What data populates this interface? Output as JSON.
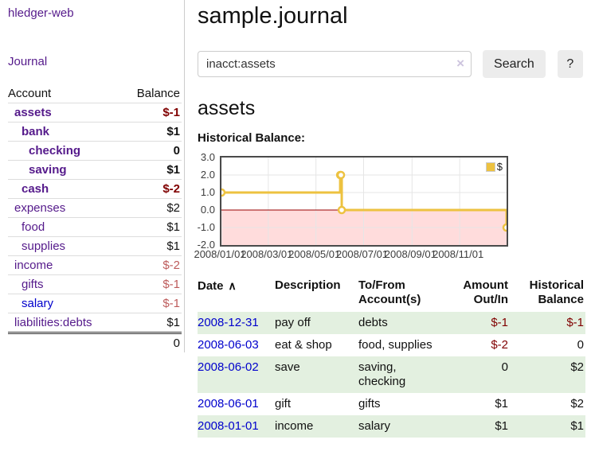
{
  "colors": {
    "link_purple": "#551a8b",
    "link_blue": "#0000cc",
    "negative_dark": "#800000",
    "negative_soft": "#bd5b5b",
    "row_stripe_green": "#e3f0e0",
    "series_yellow": "#edc240"
  },
  "icon_glyphs": {
    "sort_asc": "∧",
    "clear": "×"
  },
  "sidebar": {
    "brand": "hledger-web",
    "journal_link": "Journal",
    "accounts_table": {
      "col_account": "Account",
      "col_balance": "Balance",
      "rows": [
        {
          "name": "assets",
          "balance": "$-1",
          "level": 1,
          "emph": true
        },
        {
          "name": "bank",
          "balance": "$1",
          "level": 2,
          "emph": true
        },
        {
          "name": "checking",
          "balance": "0",
          "level": 3,
          "emph": true
        },
        {
          "name": "saving",
          "balance": "$1",
          "level": 3,
          "emph": true
        },
        {
          "name": "cash",
          "balance": "$-2",
          "level": 2,
          "emph": true
        },
        {
          "name": "expenses",
          "balance": "$2",
          "level": 1,
          "emph": false
        },
        {
          "name": "food",
          "balance": "$1",
          "level": 2,
          "emph": false
        },
        {
          "name": "supplies",
          "balance": "$1",
          "level": 2,
          "emph": false
        },
        {
          "name": "income",
          "balance": "$-2",
          "level": 1,
          "emph": false
        },
        {
          "name": "gifts",
          "balance": "$-1",
          "level": 2,
          "emph": false
        },
        {
          "name": "salary",
          "balance": "$-1",
          "level": 2,
          "emph": false,
          "fresh_link": true
        },
        {
          "name": "liabilities:debts",
          "balance": "$1",
          "level": 1,
          "emph": false
        }
      ],
      "total": "0"
    }
  },
  "header": {
    "title": "sample.journal"
  },
  "search": {
    "query": "inacct:assets",
    "button_label": "Search",
    "help_label": "?"
  },
  "account_page": {
    "heading": "assets",
    "chart_title": "Historical Balance:"
  },
  "chart_data": {
    "type": "line",
    "title": "Historical Balance",
    "step": true,
    "grid": true,
    "grid_color": "#e6e6e6",
    "negative_fill": "#ffdcdc",
    "zero_line_color": "#990000",
    "legend_position": "top-right",
    "legend": [
      {
        "label": "$",
        "color": "#edc240"
      }
    ],
    "x_range": [
      "2008-01-01",
      "2008-12-31"
    ],
    "ylim": [
      -2,
      3
    ],
    "yticks": [
      {
        "label": "3.0",
        "value": 3
      },
      {
        "label": "2.0",
        "value": 2
      },
      {
        "label": "1.0",
        "value": 1
      },
      {
        "label": "0.0",
        "value": 0
      },
      {
        "label": "-1.0",
        "value": -1
      },
      {
        "label": "-2.0",
        "value": -2
      }
    ],
    "xticks": [
      {
        "label": "2008/01/01",
        "date": "2008-01-01"
      },
      {
        "label": "2008/03/01",
        "date": "2008-03-01"
      },
      {
        "label": "2008/05/01",
        "date": "2008-05-01"
      },
      {
        "label": "2008/07/01",
        "date": "2008-07-01"
      },
      {
        "label": "2008/09/01",
        "date": "2008-09-01"
      },
      {
        "label": "2008/11/01",
        "date": "2008-11-01"
      }
    ],
    "series": [
      {
        "name": "$",
        "color": "#edc240",
        "points": [
          {
            "date": "2008-01-01",
            "value": 1
          },
          {
            "date": "2008-06-01",
            "value": 2
          },
          {
            "date": "2008-06-02",
            "value": 2
          },
          {
            "date": "2008-06-03",
            "value": 0
          },
          {
            "date": "2008-12-31",
            "value": -1
          }
        ]
      }
    ]
  },
  "register": {
    "columns": {
      "date": "Date",
      "description": "Description",
      "tofrom": "To/From Account(s)",
      "amount": "Amount Out/In",
      "balance": "Historical Balance"
    },
    "sort": {
      "column": "Date",
      "direction": "ascending"
    },
    "rows": [
      {
        "date": "2008-12-31",
        "description": "pay off",
        "accounts": "debts",
        "amount": "$-1",
        "balance": "$-1"
      },
      {
        "date": "2008-06-03",
        "description": "eat & shop",
        "accounts": "food, supplies",
        "amount": "$-2",
        "balance": "0"
      },
      {
        "date": "2008-06-02",
        "description": "save",
        "accounts": "saving, checking",
        "amount": "0",
        "balance": "$2"
      },
      {
        "date": "2008-06-01",
        "description": "gift",
        "accounts": "gifts",
        "amount": "$1",
        "balance": "$2"
      },
      {
        "date": "2008-01-01",
        "description": "income",
        "accounts": "salary",
        "amount": "$1",
        "balance": "$1"
      }
    ]
  }
}
